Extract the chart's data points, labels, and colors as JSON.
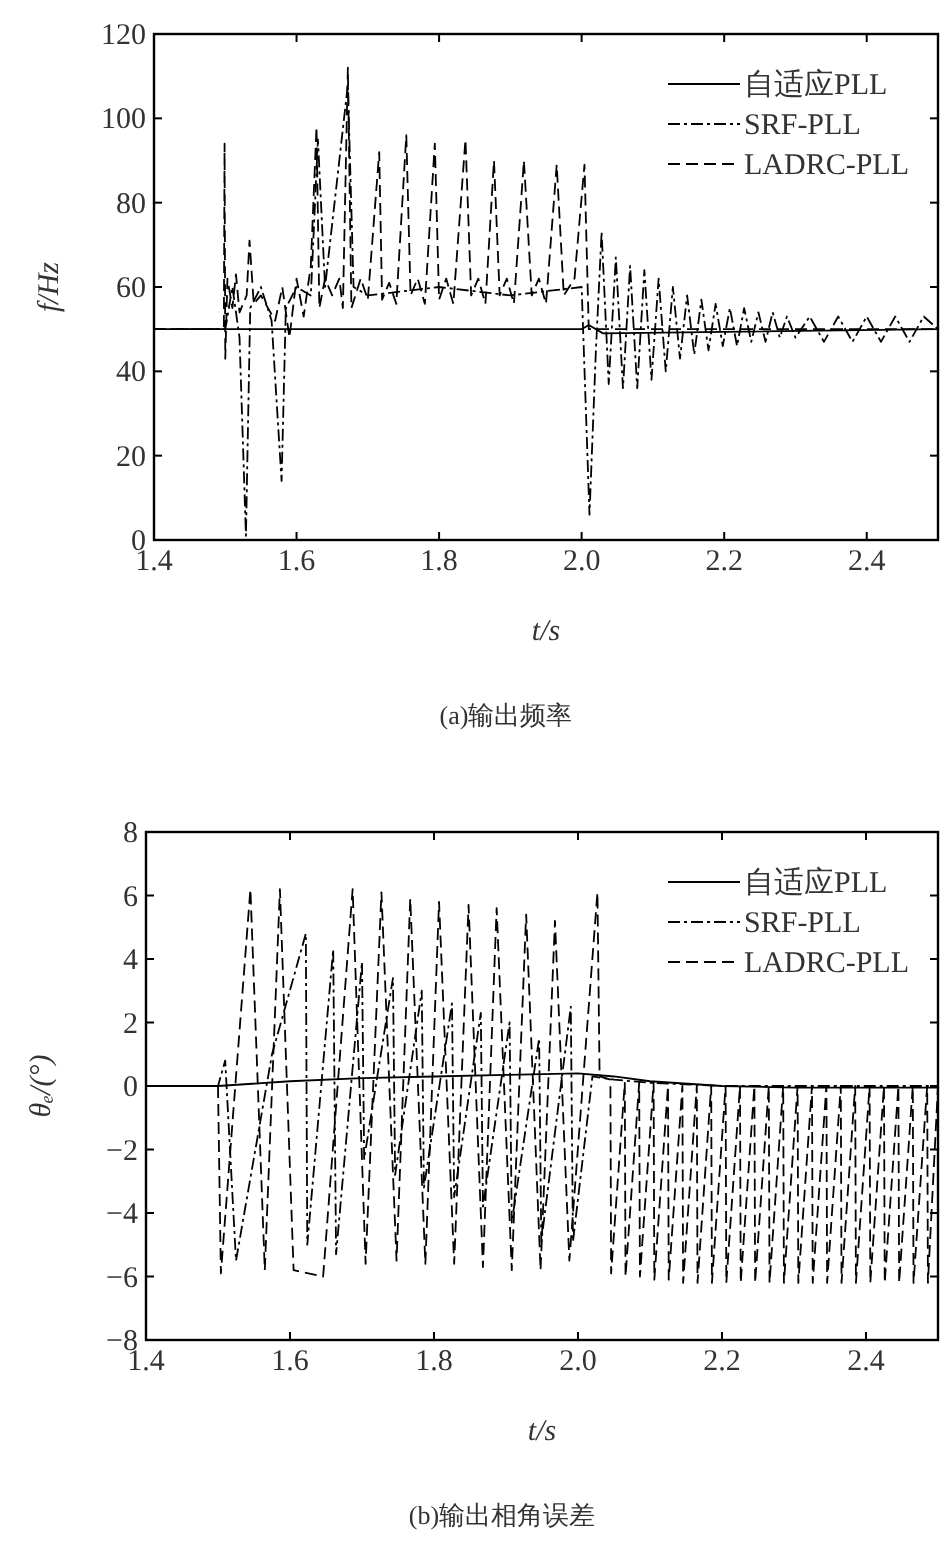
{
  "chart_data": [
    {
      "type": "line",
      "xlabel": "t/s",
      "ylabel": "f/Hz",
      "xlim": [
        1.4,
        2.5
      ],
      "xticks": [
        1.4,
        1.6,
        1.8,
        {
          "value": 2.0,
          "label": "2.0"
        },
        2.2,
        2.4
      ],
      "ylim": [
        0,
        120
      ],
      "yticks": [
        0,
        20,
        40,
        60,
        80,
        100,
        120
      ],
      "legend": "top right",
      "annotations": [
        "(a)输出频率"
      ],
      "series": [
        {
          "name": "自适应PLL",
          "color": "#000000",
          "line_style": "solid",
          "x": [
            1.4,
            2.0,
            2.01,
            2.03,
            2.5
          ],
          "values": [
            50,
            50,
            51,
            49,
            50
          ]
        },
        {
          "name": "SRF-PLL",
          "color": "#000000",
          "line_style": "dashdot",
          "x": [
            1.4,
            1.5,
            1.51,
            1.52,
            1.529,
            1.535,
            1.55,
            1.565,
            1.579,
            1.585,
            1.6,
            1.62,
            1.63,
            1.64,
            1.672,
            1.68,
            1.7,
            1.8,
            1.9,
            2.0,
            2.011,
            2.02,
            2.028,
            2.038,
            2.048,
            2.058,
            2.068,
            2.078,
            2.088,
            2.098,
            2.108,
            2.118,
            2.128,
            2.138,
            2.148,
            2.158,
            2.168,
            2.178,
            2.188,
            2.198,
            2.208,
            2.218,
            2.228,
            2.238,
            2.248,
            2.258,
            2.268,
            2.278,
            2.288,
            2.3,
            2.32,
            2.34,
            2.36,
            2.38,
            2.4,
            2.42,
            2.44,
            2.46,
            2.48,
            2.5
          ],
          "values": [
            50,
            50,
            60,
            48,
            1,
            55,
            60,
            52,
            14,
            55,
            60,
            58,
            95,
            60,
            108,
            60,
            58,
            60,
            58,
            60,
            6,
            45,
            73,
            37,
            67,
            36,
            65,
            36,
            64,
            38,
            62,
            40,
            60,
            43,
            58,
            44,
            57,
            45,
            56,
            46,
            55,
            46,
            55,
            47,
            54,
            47,
            54,
            48,
            53,
            48,
            53,
            47,
            53,
            47,
            53,
            47,
            53,
            47,
            53,
            50
          ]
        },
        {
          "name": "LADRC-PLL",
          "color": "#000000",
          "line_style": "dashed",
          "x": [
            1.4,
            1.498,
            1.499,
            1.5,
            1.503,
            1.51,
            1.515,
            1.52,
            1.53,
            1.534,
            1.54,
            1.55,
            1.56,
            1.57,
            1.58,
            1.59,
            1.6,
            1.61,
            1.62,
            1.628,
            1.632,
            1.64,
            1.65,
            1.66,
            1.665,
            1.672,
            1.677,
            1.69,
            1.7,
            1.716,
            1.72,
            1.73,
            1.74,
            1.754,
            1.76,
            1.77,
            1.78,
            1.794,
            1.8,
            1.81,
            1.82,
            1.837,
            1.845,
            1.855,
            1.865,
            1.877,
            1.885,
            1.895,
            1.905,
            1.919,
            1.93,
            1.94,
            1.95,
            1.965,
            1.975,
            1.99,
            2.004,
            2.01,
            2.5
          ],
          "values": [
            50,
            50,
            94,
            43,
            62,
            55,
            63,
            54,
            58,
            71,
            56,
            58,
            55,
            52,
            60,
            48,
            62,
            53,
            65,
            98,
            55,
            62,
            58,
            62,
            55,
            112,
            55,
            62,
            57,
            92,
            57,
            61,
            56,
            96,
            58,
            62,
            56,
            94,
            57,
            62,
            56,
            95,
            58,
            62,
            56,
            90,
            58,
            62,
            56,
            90,
            58,
            62,
            56,
            89,
            58,
            62,
            89,
            50,
            50
          ]
        }
      ]
    },
    {
      "type": "line",
      "xlabel": "t/s",
      "ylabel": "θₑ/(°)",
      "xlim": [
        1.4,
        2.5
      ],
      "xticks": [
        1.4,
        1.6,
        1.8,
        {
          "value": 2.0,
          "label": "2.0"
        },
        2.2,
        2.4
      ],
      "ylim": [
        -8,
        8
      ],
      "yticks": [
        {
          "value": -8,
          "label": "−8"
        },
        {
          "value": -6,
          "label": "−6"
        },
        {
          "value": -4,
          "label": "−4"
        },
        {
          "value": -2,
          "label": "−2"
        },
        0,
        2,
        4,
        6,
        8
      ],
      "legend": "top right",
      "annotations": [
        "(b)输出相角误差"
      ],
      "series": [
        {
          "name": "自适应PLL",
          "color": "#000000",
          "line_style": "solid",
          "x": [
            1.4,
            1.5,
            1.6,
            1.7,
            1.8,
            1.9,
            2.0,
            2.05,
            2.1,
            2.2,
            2.3,
            2.5
          ],
          "values": [
            0,
            0,
            0.15,
            0.25,
            0.3,
            0.35,
            0.4,
            0.3,
            0.15,
            0,
            -0.05,
            -0.05
          ]
        },
        {
          "name": "SRF-PLL",
          "color": "#000000",
          "line_style": "dashdot",
          "x": [
            1.4,
            1.5,
            1.51,
            1.525,
            1.575,
            1.622,
            1.624,
            1.66,
            1.664,
            1.7,
            1.703,
            1.743,
            1.746,
            1.783,
            1.786,
            1.825,
            1.828,
            1.865,
            1.868,
            1.905,
            1.908,
            1.946,
            1.949,
            1.99,
            1.993,
            2.02,
            2.05,
            2.1,
            2.2,
            2.5
          ],
          "values": [
            0,
            0,
            0.8,
            -5.5,
            1.0,
            4.8,
            -5.0,
            4.3,
            -5.3,
            3.9,
            -2.3,
            3.4,
            -2.8,
            3.0,
            -3.2,
            2.6,
            -3.5,
            2.3,
            -3.8,
            2.0,
            -4.3,
            1.5,
            -4.9,
            2.5,
            -4.9,
            0.3,
            0.2,
            0.1,
            0,
            0
          ]
        },
        {
          "name": "LADRC-PLL",
          "color": "#000000",
          "line_style": "dashed",
          "x": [
            1.4,
            1.5,
            1.504,
            1.545,
            1.565,
            1.586,
            1.605,
            1.646,
            1.687,
            1.705,
            1.727,
            1.748,
            1.767,
            1.788,
            1.807,
            1.828,
            1.848,
            1.868,
            1.887,
            1.908,
            1.928,
            1.948,
            1.968,
            1.988,
            2.027,
            2.03,
            2.045,
            2.046,
            2.065,
            2.066,
            2.085,
            2.086,
            2.105,
            2.106,
            2.125,
            2.126,
            2.145,
            2.146,
            2.165,
            2.166,
            2.185,
            2.186,
            2.205,
            2.206,
            2.225,
            2.226,
            2.245,
            2.246,
            2.265,
            2.266,
            2.285,
            2.286,
            2.305,
            2.306,
            2.325,
            2.326,
            2.345,
            2.346,
            2.365,
            2.366,
            2.385,
            2.386,
            2.405,
            2.406,
            2.425,
            2.426,
            2.445,
            2.446,
            2.465,
            2.466,
            2.485,
            2.486,
            2.5
          ],
          "values": [
            0,
            0,
            -5.9,
            6.2,
            -5.8,
            6.2,
            -5.8,
            -6.0,
            6.2,
            -5.6,
            6.1,
            -5.5,
            5.9,
            -5.6,
            5.8,
            -5.6,
            5.7,
            -5.7,
            5.6,
            -5.8,
            5.4,
            -5.8,
            5.2,
            -5.5,
            6.1,
            0.3,
            0.2,
            -5.9,
            0.1,
            -6.0,
            0.1,
            -6.0,
            0.1,
            -6.1,
            0,
            -6.1,
            0,
            -6.2,
            0,
            -6.2,
            0,
            -6.2,
            0,
            -6.2,
            0,
            -6.2,
            0,
            -6.2,
            0,
            -6.2,
            0,
            -6.2,
            0,
            -6.2,
            0,
            -6.2,
            0,
            -6.2,
            0,
            -6.2,
            0,
            -6.2,
            0,
            -6.2,
            0,
            -6.2,
            0,
            -6.2,
            0,
            -6.2,
            0,
            -6.2,
            0
          ]
        }
      ]
    }
  ]
}
